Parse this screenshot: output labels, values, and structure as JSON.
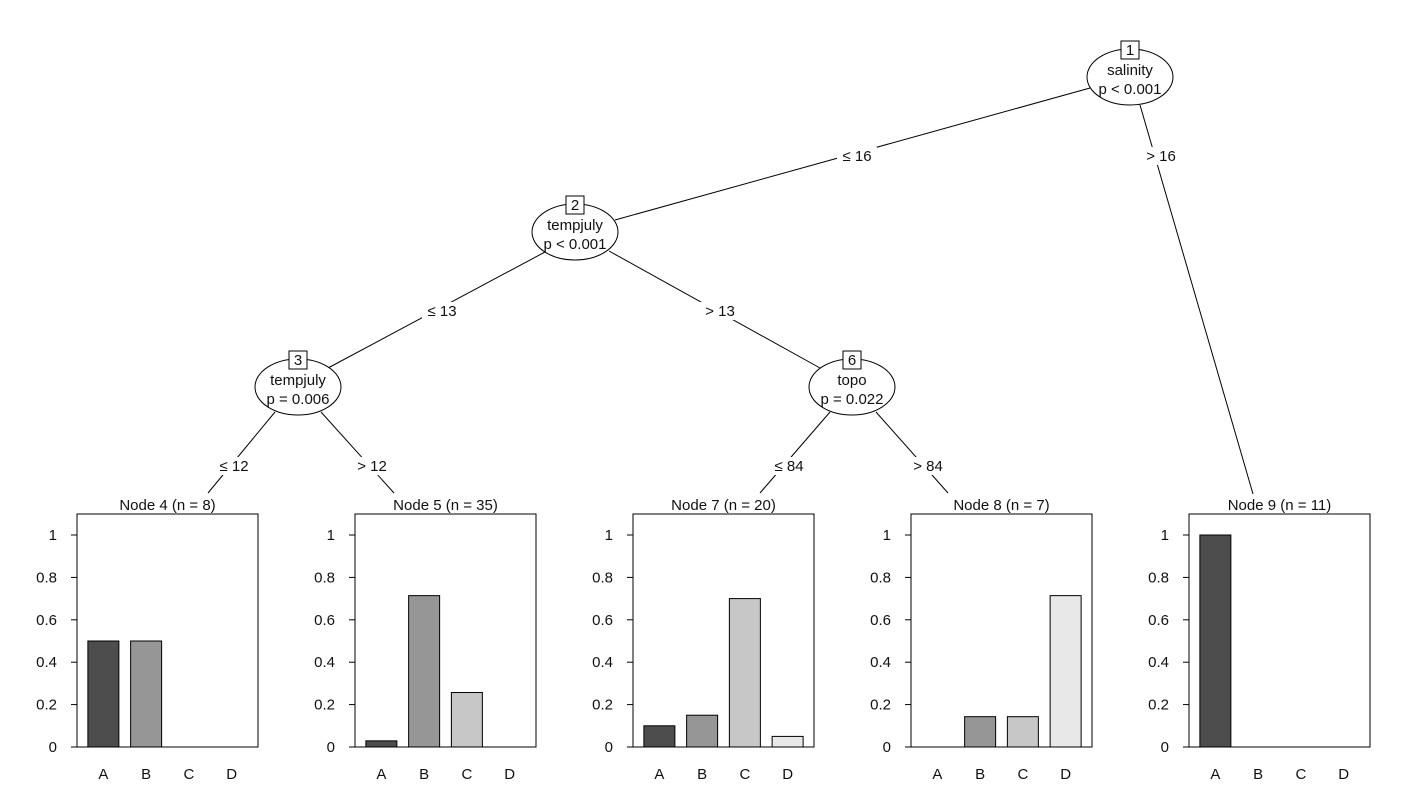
{
  "colors": {
    "A": "#4d4d4d",
    "B": "#969696",
    "C": "#c7c7c7",
    "D": "#e8e8e8"
  },
  "inner_nodes": [
    {
      "id": "1",
      "variable": "salinity",
      "p": "p < 0.001"
    },
    {
      "id": "2",
      "variable": "tempjuly",
      "p": "p < 0.001"
    },
    {
      "id": "3",
      "variable": "tempjuly",
      "p": "p = 0.006"
    },
    {
      "id": "6",
      "variable": "topo",
      "p": "p = 0.022"
    }
  ],
  "edges": [
    {
      "from": "1",
      "to": "2",
      "label": "≤ 16"
    },
    {
      "from": "1",
      "to": "9",
      "label": "> 16"
    },
    {
      "from": "2",
      "to": "3",
      "label": "≤ 13"
    },
    {
      "from": "2",
      "to": "6",
      "label": "> 13"
    },
    {
      "from": "3",
      "to": "4",
      "label": "≤ 12"
    },
    {
      "from": "3",
      "to": "5",
      "label": "> 12"
    },
    {
      "from": "6",
      "to": "7",
      "label": "≤ 84"
    },
    {
      "from": "6",
      "to": "8",
      "label": "> 84"
    }
  ],
  "chart_data": [
    {
      "type": "bar",
      "title": "Node 4 (n = 8)",
      "categories": [
        "A",
        "B",
        "C",
        "D"
      ],
      "values": [
        0.5,
        0.5,
        0,
        0
      ],
      "ylim": [
        0,
        1
      ],
      "yticks": [
        "0",
        "0.2",
        "0.4",
        "0.6",
        "0.8",
        "1"
      ]
    },
    {
      "type": "bar",
      "title": "Node 5 (n = 35)",
      "categories": [
        "A",
        "B",
        "C",
        "D"
      ],
      "values": [
        0.029,
        0.714,
        0.257,
        0
      ],
      "ylim": [
        0,
        1
      ],
      "yticks": [
        "0",
        "0.2",
        "0.4",
        "0.6",
        "0.8",
        "1"
      ]
    },
    {
      "type": "bar",
      "title": "Node 7 (n = 20)",
      "categories": [
        "A",
        "B",
        "C",
        "D"
      ],
      "values": [
        0.1,
        0.15,
        0.7,
        0.05
      ],
      "ylim": [
        0,
        1
      ],
      "yticks": [
        "0",
        "0.2",
        "0.4",
        "0.6",
        "0.8",
        "1"
      ]
    },
    {
      "type": "bar",
      "title": "Node 8 (n = 7)",
      "categories": [
        "A",
        "B",
        "C",
        "D"
      ],
      "values": [
        0,
        0.143,
        0.143,
        0.714
      ],
      "ylim": [
        0,
        1
      ],
      "yticks": [
        "0",
        "0.2",
        "0.4",
        "0.6",
        "0.8",
        "1"
      ]
    },
    {
      "type": "bar",
      "title": "Node 9 (n = 11)",
      "categories": [
        "A",
        "B",
        "C",
        "D"
      ],
      "values": [
        1,
        0,
        0,
        0
      ],
      "ylim": [
        0,
        1
      ],
      "yticks": [
        "0",
        "0.2",
        "0.4",
        "0.6",
        "0.8",
        "1"
      ]
    }
  ]
}
